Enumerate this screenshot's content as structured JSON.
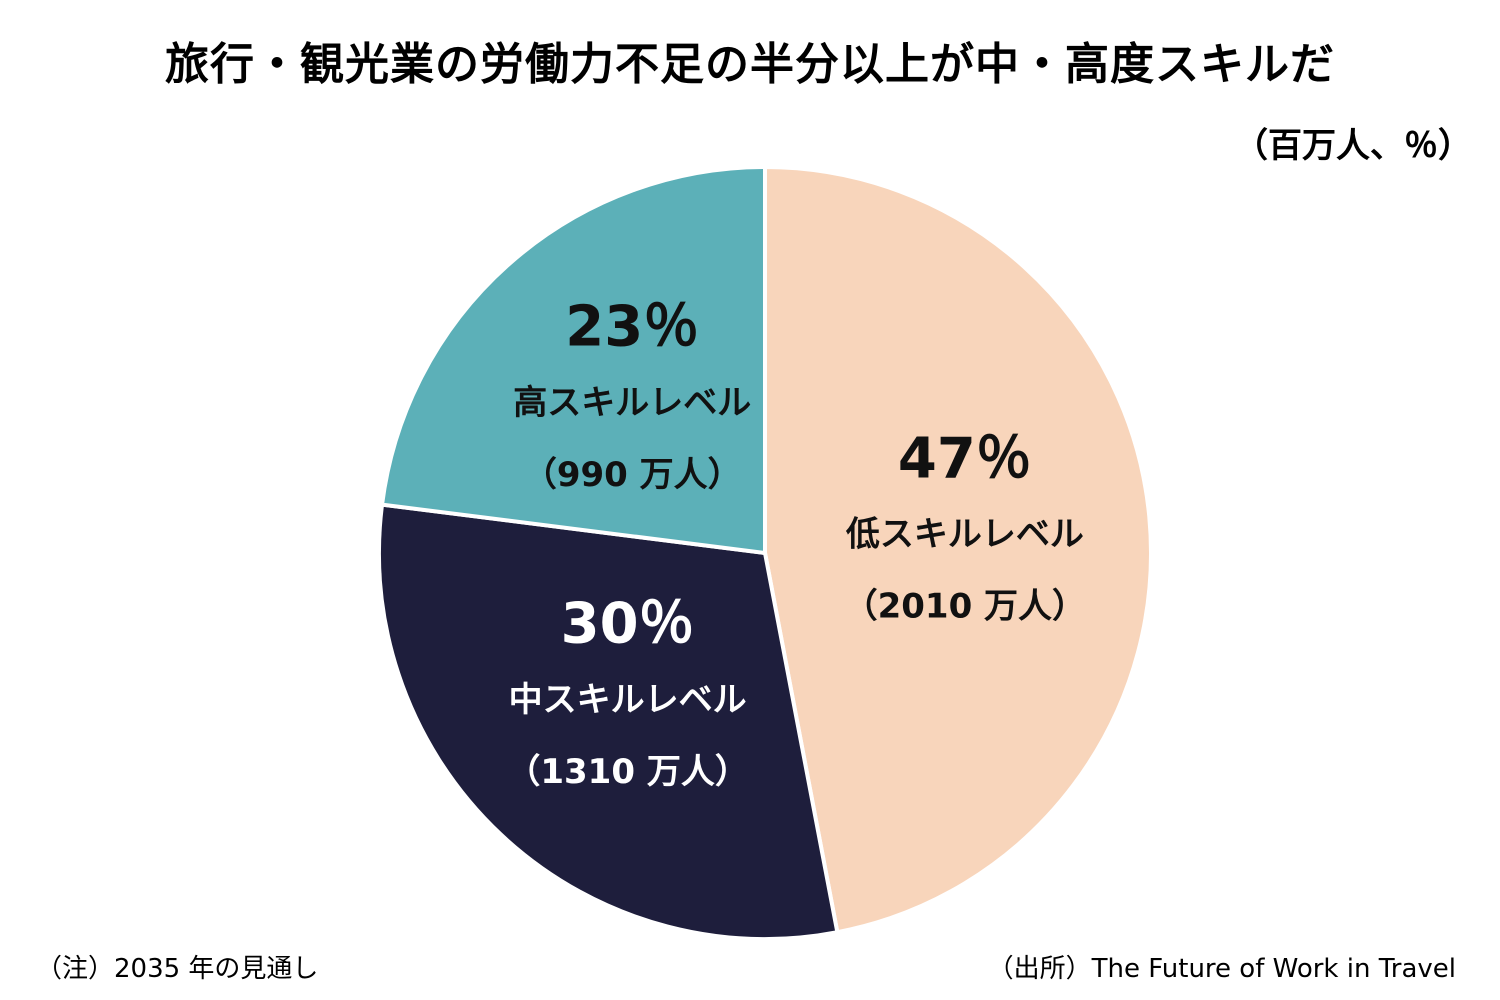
{
  "title": "旅行・観光業の労働力不足の半分以上が中・高度スキルだ",
  "unit": "（百万人、％）",
  "note": "（注）2035 年の見通し",
  "source": "（出所）The Future of Work in Travel",
  "chart_data": {
    "type": "pie",
    "start": "12 o'clock",
    "direction": "clockwise",
    "slices": [
      {
        "name": "低スキルレベル",
        "value": 47,
        "pct_label": "47％",
        "amount_label": "（2010 万人）",
        "color": "#f8d5bb",
        "text_color": "#111111"
      },
      {
        "name": "中スキルレベル",
        "value": 30,
        "pct_label": "30％",
        "amount_label": "（1310 万人）",
        "color": "#1e1e3c",
        "text_color": "#ffffff"
      },
      {
        "name": "高スキルレベル",
        "value": 23,
        "pct_label": "23％",
        "amount_label": "（990 万人）",
        "color": "#5cb0b8",
        "text_color": "#111111"
      }
    ]
  }
}
